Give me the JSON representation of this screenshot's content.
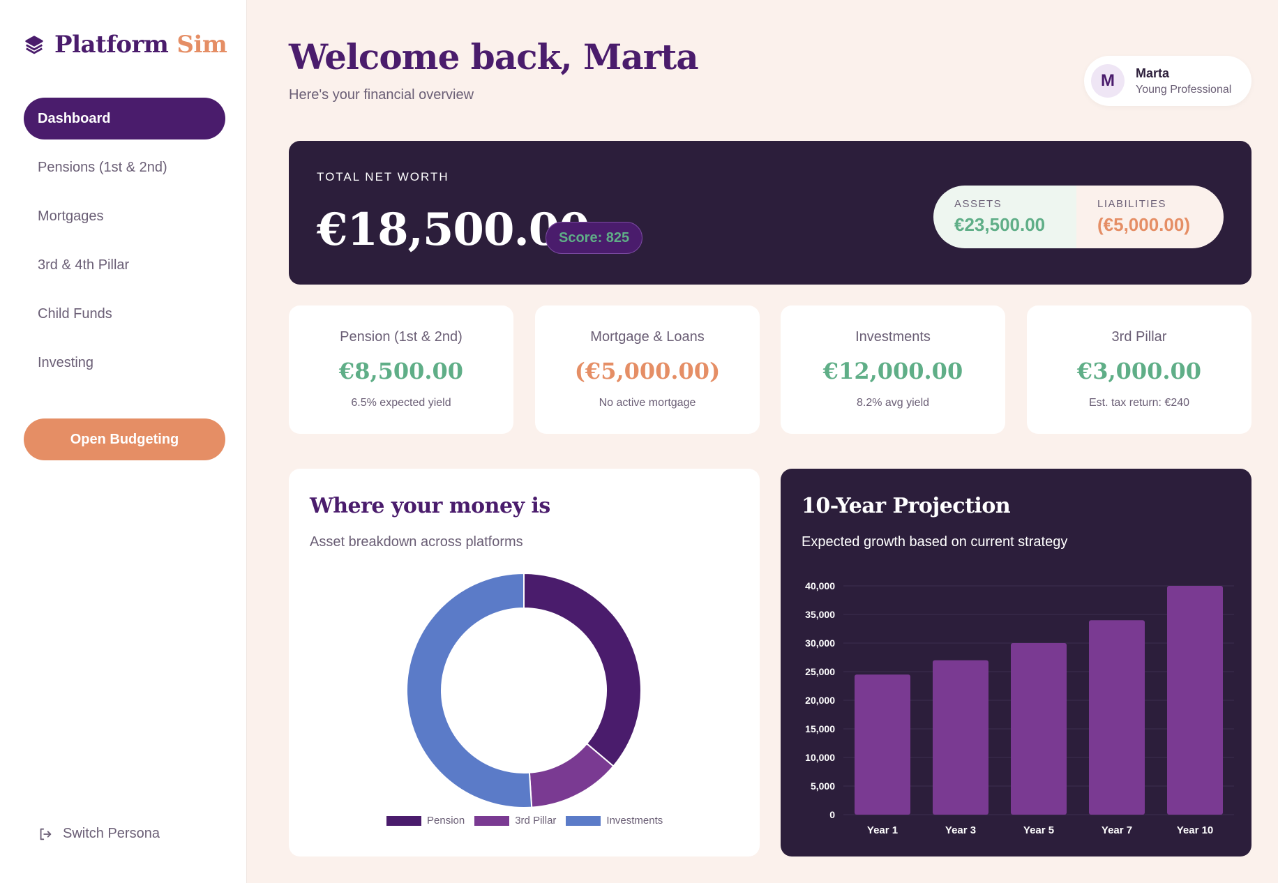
{
  "brand": {
    "name": "Platform",
    "accent": "Sim",
    "icon": "layers-icon"
  },
  "sidebar": {
    "items": [
      {
        "label": "Dashboard",
        "active": true
      },
      {
        "label": "Pensions (1st & 2nd)",
        "active": false
      },
      {
        "label": "Mortgages",
        "active": false
      },
      {
        "label": "3rd & 4th Pillar",
        "active": false
      },
      {
        "label": "Child Funds",
        "active": false
      },
      {
        "label": "Investing",
        "active": false
      }
    ],
    "budget_button": "Open Budgeting",
    "switch_persona": "Switch Persona"
  },
  "header": {
    "title": "Welcome back, Marta",
    "subtitle": "Here's your financial overview"
  },
  "user": {
    "initial": "M",
    "name": "Marta",
    "role": "Young Professional"
  },
  "networth": {
    "label": "TOTAL NET WORTH",
    "value": "€18,500.00",
    "score": "Score: 825",
    "assets_label": "ASSETS",
    "assets_value": "€23,500.00",
    "liabilities_label": "LIABILITIES",
    "liabilities_value": "(€5,000.00)"
  },
  "stats": [
    {
      "title": "Pension (1st & 2nd)",
      "value": "€8,500.00",
      "note": "6.5% expected yield",
      "tone": "green"
    },
    {
      "title": "Mortgage & Loans",
      "value": "(€5,000.00)",
      "note": "No active mortgage",
      "tone": "orange"
    },
    {
      "title": "Investments",
      "value": "€12,000.00",
      "note": "8.2% avg yield",
      "tone": "green"
    },
    {
      "title": "3rd Pillar",
      "value": "€3,000.00",
      "note": "Est. tax return: €240",
      "tone": "green"
    }
  ],
  "money_panel": {
    "title": "Where your money is",
    "subtitle": "Asset breakdown across platforms"
  },
  "projection_panel": {
    "title": "10-Year Projection",
    "subtitle": "Expected growth based on current strategy"
  },
  "colors": {
    "primary": "#4a1c6c",
    "accent": "#e58e65",
    "positive": "#5fae87",
    "dark_card": "#2c1e3b",
    "bar": "#7a3a92",
    "pension": "#4a1c6c",
    "third_pillar": "#7a3a92",
    "investments": "#5b7bc8"
  },
  "chart_data": [
    {
      "type": "pie",
      "categories": [
        "Pension",
        "3rd Pillar",
        "Investments"
      ],
      "values": [
        8500,
        3000,
        12000
      ],
      "legend": "bottom"
    },
    {
      "type": "bar",
      "categories": [
        "Year 1",
        "Year 3",
        "Year 5",
        "Year 7",
        "Year 10"
      ],
      "values": [
        24500,
        27000,
        30000,
        34000,
        40000
      ],
      "ylim": [
        0,
        40000
      ],
      "yticks": [
        "0",
        "5,000",
        "10,000",
        "15,000",
        "20,000",
        "25,000",
        "30,000",
        "35,000",
        "40,000"
      ],
      "grid": true
    }
  ]
}
